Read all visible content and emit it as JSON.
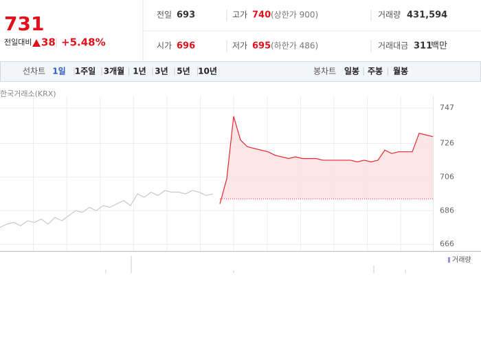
{
  "quote": {
    "price": "731",
    "change_label": "전일대비",
    "change": "38",
    "change_rate": "+5.48%",
    "rows": [
      [
        {
          "label": "전일",
          "value": "693"
        },
        {
          "label": "고가",
          "value": "740",
          "note": "(상한가 900)"
        },
        {
          "label": "거래량",
          "value": "431,594"
        }
      ],
      [
        {
          "label": "시가",
          "value": "696"
        },
        {
          "label": "저가",
          "value": "695",
          "note": "(하한가 486)"
        },
        {
          "label": "거래대금",
          "value": "311",
          "unit": "백만"
        }
      ]
    ]
  },
  "toolbar": {
    "line_chart": {
      "label": "선차트",
      "periods": [
        "1일",
        "1주일",
        "3개월",
        "1년",
        "3년",
        "5년",
        "10년"
      ],
      "selected": 0
    },
    "candle_chart": {
      "label": "봉차트",
      "periods": [
        "일봉",
        "주봉",
        "월봉"
      ]
    }
  },
  "chart": {
    "type": "line",
    "source": "한국거래소(KRX)",
    "legend": "거래량",
    "ylim": [
      662,
      754
    ],
    "yticks": [
      747,
      726,
      706,
      686,
      666
    ],
    "grid": true,
    "series": [
      {
        "color": "#c8c8c8",
        "values": [
          676,
          678,
          679,
          677,
          680,
          679,
          681,
          678,
          682,
          680,
          683,
          686,
          685,
          688,
          686,
          689,
          688,
          690,
          692,
          689,
          696,
          694,
          697,
          695,
          698,
          697,
          697,
          696,
          698,
          697,
          695,
          696,
          null,
          null,
          null,
          null,
          null,
          null,
          null,
          null,
          null,
          null,
          null,
          null,
          null,
          null,
          null,
          null,
          null,
          null,
          null,
          null,
          null,
          null,
          null,
          null,
          null,
          null,
          null,
          null,
          null,
          null,
          null,
          null
        ]
      },
      {
        "color": "#e8252b",
        "values": [
          null,
          null,
          null,
          null,
          null,
          null,
          null,
          null,
          null,
          null,
          null,
          null,
          null,
          null,
          null,
          null,
          null,
          null,
          null,
          null,
          null,
          null,
          null,
          null,
          null,
          null,
          null,
          null,
          null,
          null,
          null,
          null,
          690,
          705,
          742,
          728,
          724,
          723,
          722,
          721,
          719,
          718,
          717,
          718,
          717,
          717,
          717,
          716,
          716,
          716,
          716,
          716,
          715,
          716,
          715,
          716,
          722,
          720,
          721,
          721,
          721,
          732,
          731,
          730
        ]
      }
    ]
  }
}
